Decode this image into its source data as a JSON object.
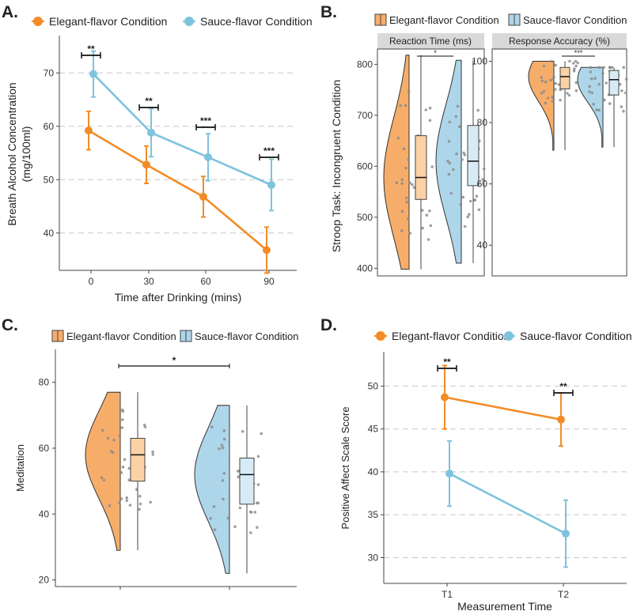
{
  "chart_data": [
    {
      "panel": "A.",
      "type": "line",
      "xlabel": "Time after Drinking (mins)",
      "ylabel": "Breath Alcohol Concentration",
      "ylabel_line2": "(mg/100ml)",
      "x_ticks": [
        "0",
        "30",
        "60",
        "90"
      ],
      "y_ticks": [
        40,
        50,
        60,
        70
      ],
      "ylim": [
        33,
        77
      ],
      "series": [
        {
          "name": "Elegant-flavor Condition",
          "color": "#f28c28",
          "values": [
            59.2,
            52.8,
            46.8,
            36.8
          ],
          "err": [
            3.6,
            3.5,
            3.8,
            4.3
          ]
        },
        {
          "name": "Sauce-flavor Condition",
          "color": "#7ec3dd",
          "values": [
            69.8,
            58.8,
            54.2,
            49.0
          ],
          "err": [
            4.3,
            4.5,
            4.4,
            4.8
          ]
        }
      ],
      "significance": [
        "**",
        "**",
        "***",
        "***"
      ]
    },
    {
      "panel": "B.",
      "type": "violin",
      "legend": [
        "Elegant-flavor Condition",
        "Sauce-flavor Condition"
      ],
      "ylabel": "Stroop Task: Incongruent Condition",
      "facets": [
        {
          "title": "Reaction Time (ms)",
          "y_ticks": [
            400,
            500,
            600,
            700,
            800
          ],
          "ylim": [
            385,
            830
          ],
          "significance": "*",
          "groups": [
            {
              "name": "Elegant-flavor Condition",
              "min": 398,
              "q1": 535,
              "median": 578,
              "q3": 660,
              "max": 818
            },
            {
              "name": "Sauce-flavor Condition",
              "min": 410,
              "q1": 562,
              "median": 610,
              "q3": 680,
              "max": 808
            }
          ]
        },
        {
          "title": "Response Accuracy (%)",
          "y_ticks": [
            40,
            60,
            80,
            100
          ],
          "ylim": [
            30,
            104
          ],
          "significance": "***",
          "groups": [
            {
              "name": "Elegant-flavor Condition",
              "min": 71,
              "q1": 91,
              "median": 95,
              "q3": 98,
              "max": 100
            },
            {
              "name": "Sauce-flavor Condition",
              "min": 72,
              "q1": 89,
              "median": 94,
              "q3": 97,
              "max": 98
            }
          ]
        }
      ]
    },
    {
      "panel": "C.",
      "type": "violin",
      "legend": [
        "Elegant-flavor Condition",
        "Sauce-flavor Condition"
      ],
      "ylabel": "Meditation",
      "y_ticks": [
        20,
        40,
        60,
        80
      ],
      "ylim": [
        18,
        90
      ],
      "significance": "*",
      "groups": [
        {
          "name": "Elegant-flavor Condition",
          "min": 29,
          "q1": 50,
          "median": 58,
          "q3": 63,
          "max": 77
        },
        {
          "name": "Sauce-flavor Condition",
          "min": 22,
          "q1": 43,
          "median": 52,
          "q3": 57,
          "max": 73
        }
      ]
    },
    {
      "panel": "D.",
      "type": "line",
      "xlabel": "Measurement Time",
      "ylabel": "Positive Affect Scale Score",
      "x_ticks": [
        "T1",
        "T2"
      ],
      "y_ticks": [
        30,
        35,
        40,
        45,
        50
      ],
      "ylim": [
        27,
        54
      ],
      "series": [
        {
          "name": "Elegant-flavor Condition",
          "color": "#f28c28",
          "values": [
            48.7,
            46.1
          ],
          "err": [
            3.7,
            3.1
          ]
        },
        {
          "name": "Sauce-flavor Condition",
          "color": "#7ec3dd",
          "values": [
            39.8,
            32.8
          ],
          "err": [
            3.8,
            3.9
          ]
        }
      ],
      "significance": [
        "**",
        "**"
      ]
    }
  ],
  "colors": {
    "orange": "#f28c28",
    "orange_fill": "#f7ad6a",
    "orange_box": "#fbd2a6",
    "blue": "#7ec3dd",
    "blue_fill": "#aed6ea",
    "blue_box": "#d6ebf5",
    "grid": "#c8c8c8",
    "strip": "#d9d9d9"
  }
}
